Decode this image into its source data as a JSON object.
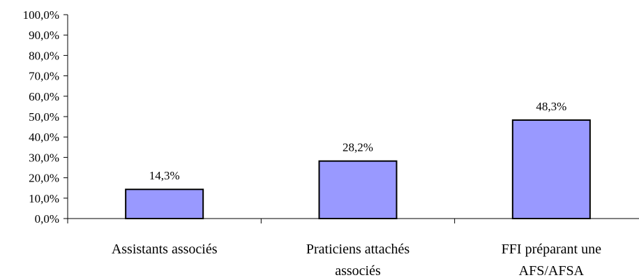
{
  "chart_data": {
    "type": "bar",
    "categories": [
      [
        "Assistants associés"
      ],
      [
        "Praticiens attachés",
        "associés"
      ],
      [
        "FFI préparant une",
        "AFS/AFSA"
      ]
    ],
    "values": [
      14.3,
      28.2,
      48.3
    ],
    "data_labels": [
      "14,3%",
      "28,2%",
      "48,3%"
    ],
    "title": "",
    "xlabel": "",
    "ylabel": "",
    "ylim": [
      0,
      100
    ],
    "y_tick_values": [
      0,
      10,
      20,
      30,
      40,
      50,
      60,
      70,
      80,
      90,
      100
    ],
    "y_tick_labels": [
      "0,0%",
      "10,0%",
      "20,0%",
      "30,0%",
      "40,0%",
      "50,0%",
      "60,0%",
      "70,0%",
      "80,0%",
      "90,0%",
      "100,0%"
    ],
    "grid": false,
    "legend": "none",
    "bar_color": "#9999ff",
    "bar_edge_color": "#000000"
  }
}
